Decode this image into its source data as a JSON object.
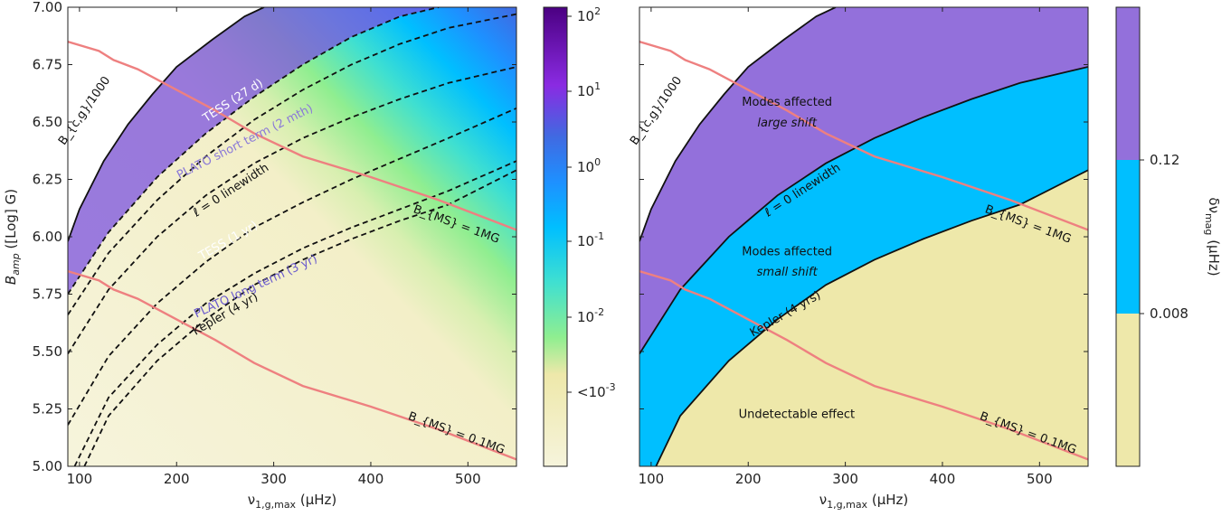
{
  "chart_data": [
    {
      "type": "heatmap",
      "title": "",
      "xlabel": "ν_{1,g,max} (μHz)",
      "ylabel": "B_{amp} ([Log] G)",
      "xlim": [
        88,
        550
      ],
      "ylim": [
        5.0,
        7.0
      ],
      "xticks": [
        "100",
        "200",
        "300",
        "400",
        "500"
      ],
      "yticks": [
        "5.00",
        "5.25",
        "5.50",
        "5.75",
        "6.00",
        "6.25",
        "6.50",
        "6.75",
        "7.00"
      ],
      "colorbar": {
        "scale": "log",
        "ticks": [
          "10^2",
          "10^1",
          "10^0",
          "10^-1",
          "10^-2",
          "<10^-3"
        ]
      },
      "grid": false,
      "series": [
        {
          "name": "B_c,g/1000",
          "style": "solid-black",
          "x": [
            88,
            100,
            125,
            150,
            175,
            200,
            237,
            270,
            290
          ],
          "y": [
            5.98,
            6.12,
            6.33,
            6.49,
            6.62,
            6.74,
            6.86,
            6.96,
            7.0
          ]
        },
        {
          "name": "TESS (27 d)",
          "style": "dashed-black",
          "x": [
            88,
            130,
            180,
            230,
            280,
            330,
            380,
            430,
            470
          ],
          "y": [
            5.75,
            6.02,
            6.26,
            6.45,
            6.61,
            6.75,
            6.87,
            6.96,
            7.0
          ]
        },
        {
          "name": "PLATO short term (2 mth)",
          "style": "dashed-black",
          "x": [
            88,
            130,
            180,
            230,
            280,
            330,
            380,
            430,
            480,
            550
          ],
          "y": [
            5.66,
            5.93,
            6.16,
            6.35,
            6.51,
            6.64,
            6.75,
            6.84,
            6.91,
            6.97
          ]
        },
        {
          "name": "ℓ = 0 linewidth",
          "style": "dashed-black",
          "x": [
            88,
            130,
            180,
            230,
            280,
            330,
            380,
            430,
            480,
            550
          ],
          "y": [
            5.49,
            5.77,
            6.0,
            6.18,
            6.32,
            6.43,
            6.52,
            6.6,
            6.67,
            6.74
          ]
        },
        {
          "name": "TESS (1 yr)",
          "style": "dashed-black",
          "x": [
            88,
            130,
            180,
            230,
            280,
            330,
            380,
            430,
            480,
            550
          ],
          "y": [
            5.18,
            5.48,
            5.71,
            5.89,
            6.04,
            6.15,
            6.25,
            6.34,
            6.43,
            6.56
          ]
        },
        {
          "name": "PLATO long term (3 yr)",
          "style": "dashed-black",
          "x": [
            95,
            130,
            180,
            230,
            280,
            330,
            380,
            430,
            480,
            550
          ],
          "y": [
            5.0,
            5.3,
            5.53,
            5.71,
            5.84,
            5.95,
            6.04,
            6.12,
            6.2,
            6.33
          ]
        },
        {
          "name": "Kepler (4 yr)",
          "style": "dashed-black",
          "x": [
            105,
            130,
            180,
            230,
            280,
            330,
            380,
            430,
            480,
            550
          ],
          "y": [
            5.0,
            5.22,
            5.46,
            5.64,
            5.79,
            5.9,
            5.99,
            6.07,
            6.14,
            6.29
          ]
        },
        {
          "name": "B_MS = 1MG",
          "style": "solid-salmon",
          "x": [
            88,
            120,
            135,
            160,
            200,
            240,
            280,
            330,
            400,
            470,
            550
          ],
          "y": [
            6.85,
            6.81,
            6.77,
            6.73,
            6.64,
            6.55,
            6.45,
            6.35,
            6.26,
            6.16,
            6.03
          ]
        },
        {
          "name": "B_MS = 0.1MG",
          "style": "solid-salmon",
          "x": [
            88,
            120,
            135,
            160,
            200,
            240,
            280,
            330,
            400,
            470,
            550
          ],
          "y": [
            5.85,
            5.81,
            5.77,
            5.73,
            5.64,
            5.55,
            5.45,
            5.35,
            5.26,
            5.16,
            5.03
          ]
        }
      ],
      "annotations": [
        "B_{c,g}/1000",
        "TESS (27 d)",
        "PLATO short term (2 mth)",
        "ℓ = 0 linewidth",
        "TESS (1 yr)",
        "PLATO long term (3 yr)",
        "Kepler (4 yr)",
        "B_{MS} = 1MG",
        "B_{MS} = 0.1MG"
      ]
    },
    {
      "type": "area",
      "title": "",
      "xlabel": "ν_{1,g,max} (μHz)",
      "ylabel": "",
      "xlim": [
        88,
        550
      ],
      "ylim": [
        5.0,
        7.0
      ],
      "xticks": [
        "100",
        "200",
        "300",
        "400",
        "500"
      ],
      "grid": false,
      "colorbar": {
        "label": "δν_mag (μHz)",
        "ticks": [
          "0.12",
          "0.008"
        ],
        "colors": [
          "#9370db",
          "#00bfff",
          "#eee8aa"
        ]
      },
      "regions": [
        {
          "name": "Modes affected large shift",
          "color": "#9370db"
        },
        {
          "name": "Modes affected small shift",
          "color": "#00bfff"
        },
        {
          "name": "Undetectable effect",
          "color": "#eee8aa"
        }
      ],
      "series": [
        {
          "name": "B_c,g/1000",
          "x": [
            88,
            100,
            125,
            150,
            175,
            200,
            237,
            270,
            290
          ],
          "y": [
            5.98,
            6.12,
            6.33,
            6.49,
            6.62,
            6.74,
            6.86,
            6.96,
            7.0
          ]
        },
        {
          "name": "ℓ = 0 linewidth",
          "x": [
            88,
            130,
            180,
            230,
            280,
            330,
            380,
            430,
            480,
            550
          ],
          "y": [
            5.49,
            5.77,
            6.0,
            6.18,
            6.32,
            6.43,
            6.52,
            6.6,
            6.67,
            6.74
          ]
        },
        {
          "name": "Kepler (4 yrs)",
          "x": [
            105,
            130,
            180,
            230,
            280,
            330,
            380,
            430,
            480,
            550
          ],
          "y": [
            5.0,
            5.22,
            5.46,
            5.64,
            5.79,
            5.9,
            5.99,
            6.07,
            6.14,
            6.29
          ]
        },
        {
          "name": "B_MS = 1MG",
          "x": [
            88,
            120,
            135,
            160,
            200,
            240,
            280,
            330,
            400,
            470,
            550
          ],
          "y": [
            6.85,
            6.81,
            6.77,
            6.73,
            6.64,
            6.55,
            6.45,
            6.35,
            6.26,
            6.16,
            6.03
          ]
        },
        {
          "name": "B_MS = 0.1MG",
          "x": [
            88,
            120,
            135,
            160,
            200,
            240,
            280,
            330,
            400,
            470,
            550
          ],
          "y": [
            5.85,
            5.81,
            5.77,
            5.73,
            5.64,
            5.55,
            5.45,
            5.35,
            5.26,
            5.16,
            5.03
          ]
        }
      ],
      "annotations": [
        "Modes affected",
        "large shift",
        "Modes affected",
        "small shift",
        "Undetectable effect",
        "B_{c,g}/1000",
        "ℓ = 0 linewidth",
        "Kepler (4 yrs)",
        "B_{MS} = 1MG",
        "B_{MS} = 0.1MG"
      ]
    }
  ]
}
